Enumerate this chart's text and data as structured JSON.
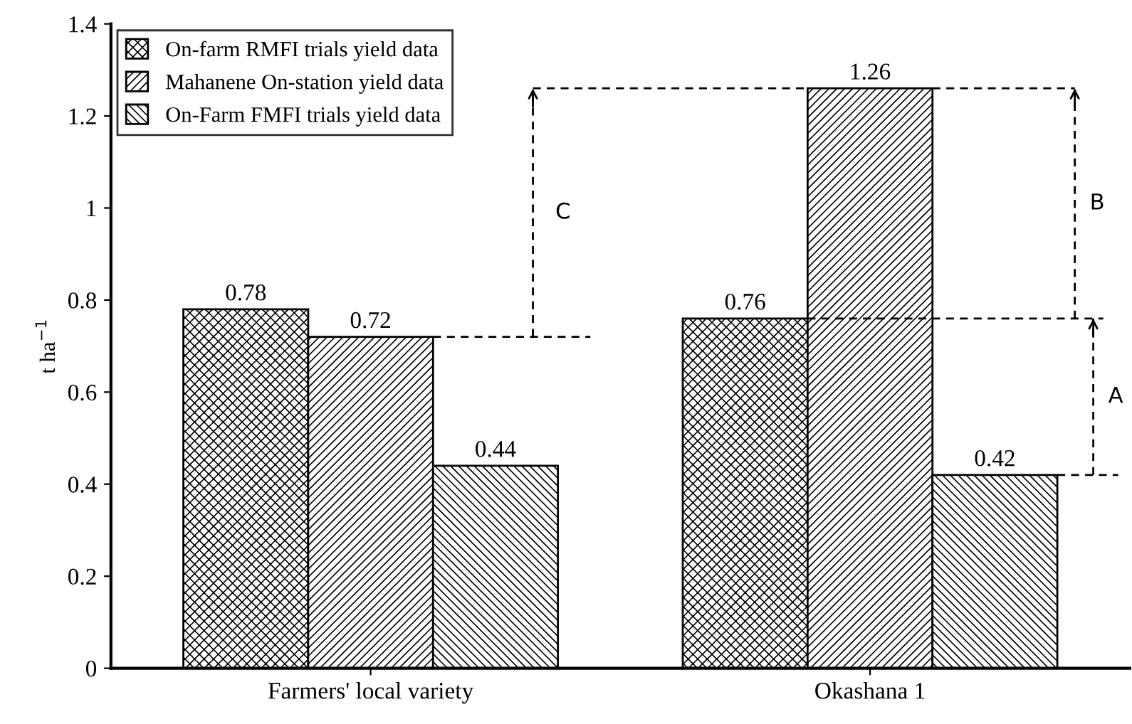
{
  "chart_data": {
    "type": "bar",
    "categories": [
      "Farmers' local variety",
      "Okashana 1"
    ],
    "series": [
      {
        "name": "On-farm RMFI trials yield data",
        "color": "#000000",
        "values": [
          0.78,
          0.76
        ]
      },
      {
        "name": "Mahanene On-station yield data",
        "color": "#000000",
        "values": [
          0.72,
          1.26
        ]
      },
      {
        "name": "On-Farm FMFI trials yield data",
        "color": "#000000",
        "values": [
          0.44,
          0.42
        ]
      }
    ],
    "ylabel": "t ha$^{−1}$",
    "ylim": [
      0,
      1.4
    ],
    "yticks": [
      0,
      0.2,
      0.4,
      0.6,
      0.8,
      1,
      1.2,
      1.4
    ],
    "data_labels": true,
    "legend": "top left",
    "grid": false,
    "annotations": [
      "C",
      "B",
      "A"
    ]
  }
}
